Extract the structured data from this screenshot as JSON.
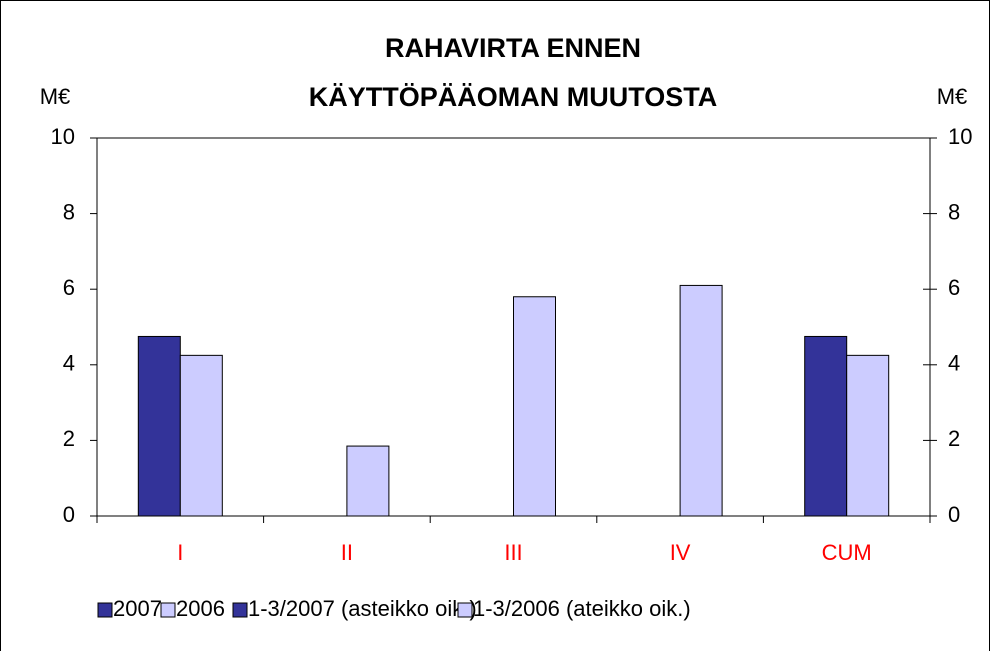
{
  "chart_data": {
    "type": "bar",
    "title": [
      "RAHAVIRTA ENNEN",
      "KÄYTTÖPÄÄOMAN MUUTOSTA"
    ],
    "ylabel": "M€",
    "y2label": "M€",
    "categories": [
      "I",
      "II",
      "III",
      "IV",
      "CUM"
    ],
    "category_color": "#ff0000",
    "series": [
      {
        "name": "2007",
        "color": "#333399",
        "values": [
          4.75,
          null,
          null,
          null,
          null
        ]
      },
      {
        "name": "2006",
        "color": "#ccccff",
        "values": [
          4.25,
          1.85,
          5.8,
          6.1,
          null
        ]
      },
      {
        "name": "1-3/2007 (asteikko oik.)",
        "color": "#333399",
        "axis": "y2",
        "values": [
          null,
          null,
          null,
          null,
          4.75
        ]
      },
      {
        "name": "1-3/2006 (ateikko oik.)",
        "color": "#ccccff",
        "axis": "y2",
        "values": [
          null,
          null,
          null,
          null,
          4.25
        ]
      }
    ],
    "ylim": [
      0,
      10
    ],
    "yticks": [
      0,
      2,
      4,
      6,
      8,
      10
    ],
    "y2lim": [
      0,
      10
    ],
    "y2ticks": [
      0,
      2,
      4,
      6,
      8,
      10
    ],
    "legend": "bottom"
  }
}
